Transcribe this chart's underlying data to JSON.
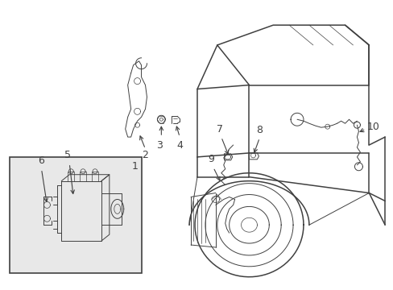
{
  "bg_color": "#ffffff",
  "line_color": "#404040",
  "box_bg": "#e0e0e0",
  "lw_main": 1.1,
  "lw_detail": 0.7,
  "lw_thin": 0.5
}
